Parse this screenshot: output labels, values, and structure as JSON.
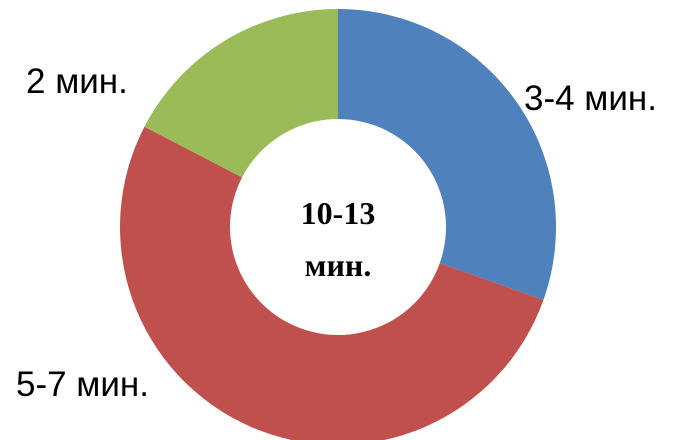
{
  "chart_data": {
    "type": "pie",
    "donut": true,
    "center_text": [
      "10-13",
      "мин."
    ],
    "slices": [
      {
        "label": "3-4 мин.",
        "value": 3.5,
        "color": "#4F81BD"
      },
      {
        "label": "5-7 мин.",
        "value": 6,
        "color": "#C0504D"
      },
      {
        "label": "2 мин.",
        "value": 2,
        "color": "#9BBB59"
      }
    ],
    "title": "",
    "legend": "none"
  }
}
